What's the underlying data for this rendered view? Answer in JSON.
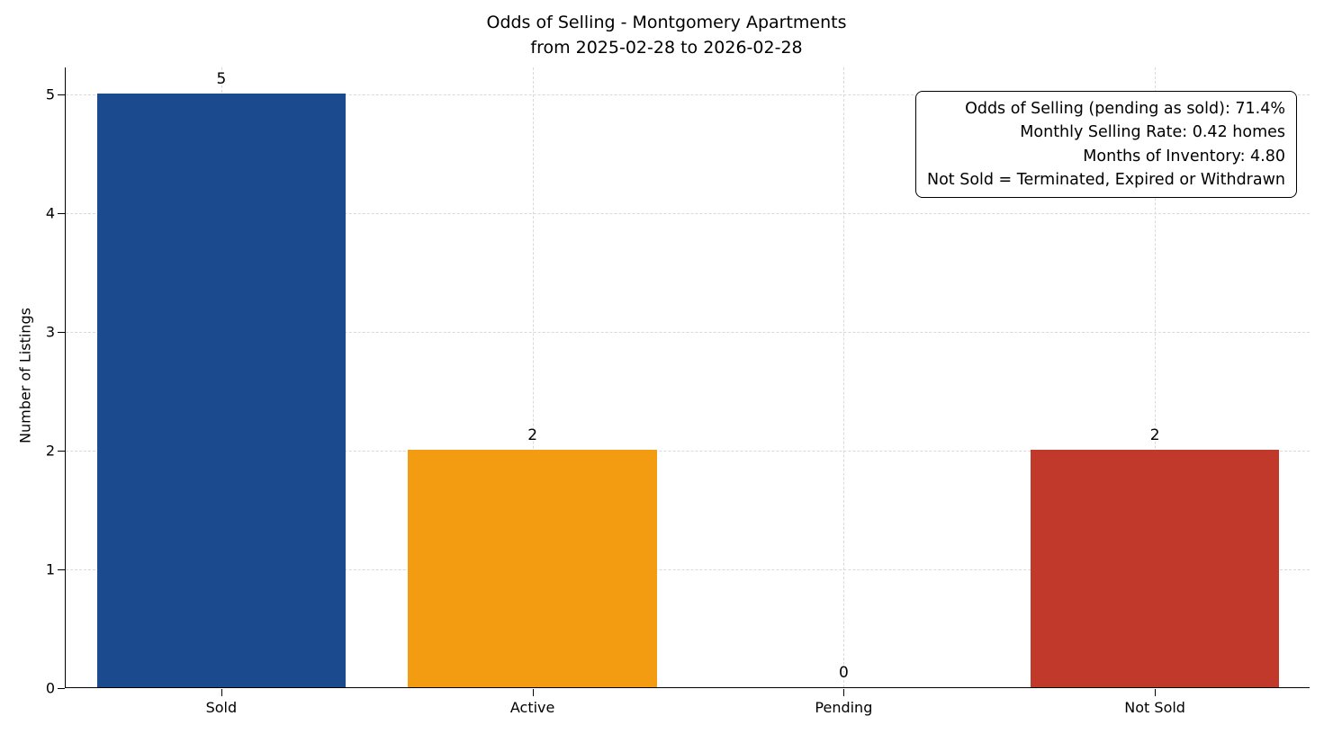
{
  "title": {
    "line1": "Odds of Selling - Montgomery Apartments",
    "line2": "from 2025-02-28 to 2026-02-28"
  },
  "ylabel": "Number of Listings",
  "annotation": {
    "lines": [
      "Odds of Selling (pending as sold): 71.4%",
      "Monthly Selling Rate: 0.42 homes",
      "Months of Inventory: 4.80",
      "Not Sold = Terminated, Expired or Withdrawn"
    ]
  },
  "chart_data": {
    "type": "bar",
    "title": "Odds of Selling - Montgomery Apartments from 2025-02-28 to 2026-02-28",
    "categories": [
      "Sold",
      "Active",
      "Pending",
      "Not Sold"
    ],
    "values": [
      5,
      2,
      0,
      2
    ],
    "value_labels": [
      "5",
      "2",
      "0",
      "2"
    ],
    "colors": [
      "#1b4a8f",
      "#f39c12",
      null,
      "#c0392b"
    ],
    "xlabel": "",
    "ylabel": "Number of Listings",
    "ylim": [
      0,
      5.23
    ],
    "yticks": [
      0,
      1,
      2,
      3,
      4,
      5
    ],
    "bar_width_fraction": 0.8,
    "grid": "dashed, both axes, light gray",
    "legend": "none",
    "annotation_position": "top-right"
  }
}
